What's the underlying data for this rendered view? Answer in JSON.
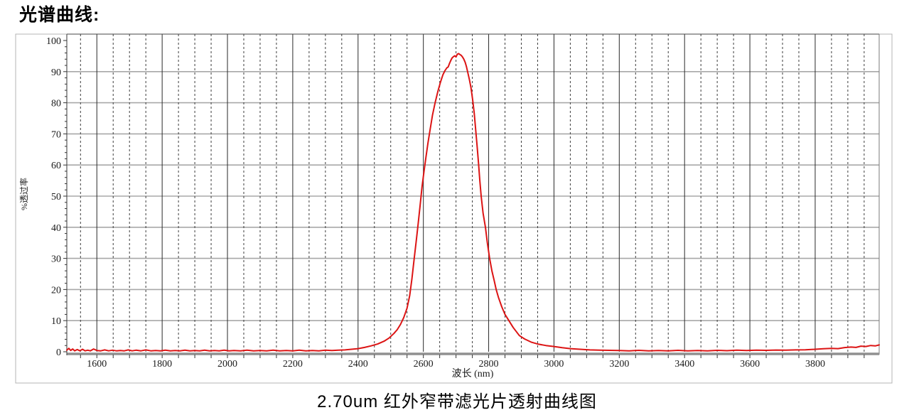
{
  "header": {
    "title": "光谱曲线:"
  },
  "chart_data": {
    "type": "line",
    "title": "光谱曲线:",
    "caption": "2.70um 红外窄带滤光片透射曲线图",
    "xlabel": "波长 (nm)",
    "ylabel": "%透过率",
    "xlim": [
      1508,
      3996
    ],
    "ylim": [
      0,
      100
    ],
    "x_major_ticks": [
      1600,
      1800,
      2000,
      2200,
      2400,
      2600,
      2800,
      3000,
      3200,
      3400,
      3600,
      3800
    ],
    "x_minor_step": 50,
    "y_major_ticks": [
      0,
      10,
      20,
      30,
      40,
      50,
      60,
      70,
      80,
      90,
      100
    ],
    "y_minor_step": 2,
    "grid": {
      "horizontal": "solid gray every 10 units",
      "vertical_major": "solid black every 200 nm",
      "vertical_minor": "dashed every 50 nm",
      "legend": "none"
    },
    "peak": {
      "wavelength_nm": 2708,
      "transmittance_pct": 95.8
    },
    "series": [
      {
        "name": "transmittance",
        "color": "#dc1414",
        "points": [
          [
            1508,
            0.5
          ],
          [
            1514,
            1.1
          ],
          [
            1520,
            0.4
          ],
          [
            1526,
            0.9
          ],
          [
            1532,
            0.3
          ],
          [
            1540,
            0.7
          ],
          [
            1548,
            0.3
          ],
          [
            1556,
            0.8
          ],
          [
            1564,
            0.3
          ],
          [
            1572,
            0.5
          ],
          [
            1580,
            0.3
          ],
          [
            1590,
            0.9
          ],
          [
            1600,
            0.4
          ],
          [
            1612,
            0.3
          ],
          [
            1624,
            0.6
          ],
          [
            1636,
            0.3
          ],
          [
            1648,
            0.5
          ],
          [
            1660,
            0.3
          ],
          [
            1672,
            0.4
          ],
          [
            1684,
            0.3
          ],
          [
            1696,
            0.6
          ],
          [
            1708,
            0.3
          ],
          [
            1720,
            0.5
          ],
          [
            1735,
            0.3
          ],
          [
            1750,
            0.6
          ],
          [
            1765,
            0.3
          ],
          [
            1780,
            0.4
          ],
          [
            1795,
            0.3
          ],
          [
            1810,
            0.5
          ],
          [
            1825,
            0.3
          ],
          [
            1840,
            0.4
          ],
          [
            1855,
            0.3
          ],
          [
            1870,
            0.5
          ],
          [
            1885,
            0.3
          ],
          [
            1900,
            0.4
          ],
          [
            1915,
            0.3
          ],
          [
            1930,
            0.5
          ],
          [
            1945,
            0.3
          ],
          [
            1960,
            0.4
          ],
          [
            1975,
            0.3
          ],
          [
            1990,
            0.5
          ],
          [
            2005,
            0.3
          ],
          [
            2020,
            0.4
          ],
          [
            2040,
            0.3
          ],
          [
            2060,
            0.5
          ],
          [
            2080,
            0.3
          ],
          [
            2100,
            0.4
          ],
          [
            2120,
            0.3
          ],
          [
            2140,
            0.5
          ],
          [
            2160,
            0.3
          ],
          [
            2180,
            0.4
          ],
          [
            2200,
            0.3
          ],
          [
            2220,
            0.5
          ],
          [
            2240,
            0.3
          ],
          [
            2260,
            0.4
          ],
          [
            2280,
            0.3
          ],
          [
            2300,
            0.5
          ],
          [
            2320,
            0.4
          ],
          [
            2340,
            0.5
          ],
          [
            2360,
            0.6
          ],
          [
            2380,
            0.8
          ],
          [
            2400,
            1.0
          ],
          [
            2420,
            1.4
          ],
          [
            2440,
            1.9
          ],
          [
            2460,
            2.5
          ],
          [
            2480,
            3.4
          ],
          [
            2495,
            4.4
          ],
          [
            2510,
            5.9
          ],
          [
            2520,
            7.1
          ],
          [
            2530,
            8.8
          ],
          [
            2540,
            11.0
          ],
          [
            2550,
            14.0
          ],
          [
            2558,
            18.0
          ],
          [
            2565,
            23.5
          ],
          [
            2572,
            30.0
          ],
          [
            2578,
            35.5
          ],
          [
            2584,
            41.0
          ],
          [
            2590,
            47.0
          ],
          [
            2596,
            53.0
          ],
          [
            2602,
            58.0
          ],
          [
            2608,
            62.5
          ],
          [
            2614,
            67.0
          ],
          [
            2620,
            71.0
          ],
          [
            2628,
            76.0
          ],
          [
            2636,
            80.0
          ],
          [
            2644,
            83.5
          ],
          [
            2652,
            86.5
          ],
          [
            2660,
            89.0
          ],
          [
            2666,
            90.3
          ],
          [
            2672,
            91.2
          ],
          [
            2676,
            91.5
          ],
          [
            2680,
            92.6
          ],
          [
            2684,
            93.6
          ],
          [
            2688,
            94.4
          ],
          [
            2692,
            94.8
          ],
          [
            2696,
            95.1
          ],
          [
            2700,
            94.7
          ],
          [
            2704,
            95.6
          ],
          [
            2708,
            95.8
          ],
          [
            2712,
            95.5
          ],
          [
            2716,
            95.2
          ],
          [
            2720,
            94.7
          ],
          [
            2724,
            94.0
          ],
          [
            2728,
            93.0
          ],
          [
            2732,
            91.6
          ],
          [
            2736,
            89.8
          ],
          [
            2741,
            87.5
          ],
          [
            2746,
            84.8
          ],
          [
            2751,
            81.0
          ],
          [
            2756,
            76.5
          ],
          [
            2761,
            70.5
          ],
          [
            2765,
            65.5
          ],
          [
            2769,
            60.5
          ],
          [
            2773,
            55.0
          ],
          [
            2777,
            50.0
          ],
          [
            2783,
            44.5
          ],
          [
            2790,
            40.0
          ],
          [
            2796,
            35.0
          ],
          [
            2803,
            30.0
          ],
          [
            2810,
            26.0
          ],
          [
            2817,
            22.8
          ],
          [
            2823,
            20.0
          ],
          [
            2830,
            17.5
          ],
          [
            2840,
            14.5
          ],
          [
            2850,
            12.0
          ],
          [
            2862,
            10.0
          ],
          [
            2875,
            7.8
          ],
          [
            2894,
            5.2
          ],
          [
            2910,
            4.1
          ],
          [
            2930,
            3.1
          ],
          [
            2950,
            2.5
          ],
          [
            2975,
            2.0
          ],
          [
            3000,
            1.7
          ],
          [
            3025,
            1.3
          ],
          [
            3050,
            1.0
          ],
          [
            3080,
            0.8
          ],
          [
            3110,
            0.6
          ],
          [
            3140,
            0.5
          ],
          [
            3170,
            0.45
          ],
          [
            3200,
            0.4
          ],
          [
            3230,
            0.3
          ],
          [
            3260,
            0.45
          ],
          [
            3290,
            0.3
          ],
          [
            3320,
            0.4
          ],
          [
            3350,
            0.3
          ],
          [
            3380,
            0.45
          ],
          [
            3410,
            0.3
          ],
          [
            3440,
            0.4
          ],
          [
            3470,
            0.3
          ],
          [
            3500,
            0.45
          ],
          [
            3530,
            0.35
          ],
          [
            3560,
            0.5
          ],
          [
            3590,
            0.4
          ],
          [
            3620,
            0.5
          ],
          [
            3650,
            0.45
          ],
          [
            3680,
            0.55
          ],
          [
            3710,
            0.5
          ],
          [
            3740,
            0.6
          ],
          [
            3770,
            0.65
          ],
          [
            3800,
            0.8
          ],
          [
            3825,
            0.95
          ],
          [
            3850,
            1.1
          ],
          [
            3870,
            1.0
          ],
          [
            3890,
            1.35
          ],
          [
            3910,
            1.5
          ],
          [
            3925,
            1.4
          ],
          [
            3940,
            1.8
          ],
          [
            3955,
            1.7
          ],
          [
            3970,
            2.0
          ],
          [
            3985,
            1.9
          ],
          [
            3996,
            2.2
          ]
        ]
      }
    ]
  },
  "colors": {
    "curve": "#dc1414",
    "grid_horizontal": "#a8a8a8",
    "grid_vertical_major": "#2a2a2a",
    "grid_vertical_minor": "#3c3c3c",
    "axis": "#565656",
    "axis_bottom_thick": "#909090",
    "outer_frame": "#b4b4b4",
    "tick_text": "#1a1a1a"
  }
}
